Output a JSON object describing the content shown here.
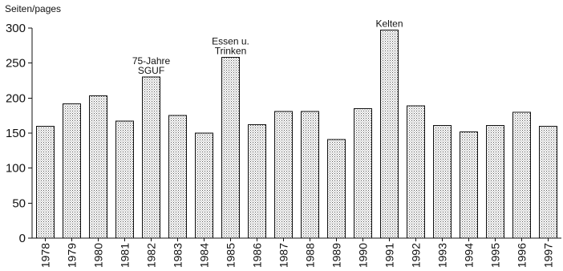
{
  "chart_data": {
    "type": "bar",
    "title": "",
    "xlabel": "",
    "ylabel": "Seiten/pages",
    "categories": [
      "1978",
      "1979",
      "1980",
      "1981",
      "1982",
      "1983",
      "1984",
      "1985",
      "1986",
      "1987",
      "1988",
      "1989",
      "1990",
      "1991",
      "1992",
      "1993",
      "1994",
      "1995",
      "1996",
      "1997"
    ],
    "values": [
      160,
      192,
      203,
      167,
      230,
      175,
      150,
      258,
      162,
      181,
      181,
      141,
      185,
      297,
      189,
      161,
      152,
      161,
      180,
      160
    ],
    "ylim": [
      0,
      300
    ],
    "yticks": [
      "0",
      "50",
      "100",
      "150",
      "200",
      "250",
      "300"
    ],
    "grid": false,
    "legend": "none",
    "annotations": [
      {
        "category": "1982",
        "lines": [
          "75-Jahre",
          "SGUF"
        ]
      },
      {
        "category": "1985",
        "lines": [
          "Essen u.",
          "Trinken"
        ]
      },
      {
        "category": "1991",
        "lines": [
          "Kelten"
        ]
      }
    ],
    "colors": {
      "bar_fill": "#ffffff",
      "bar_dots": "#555555",
      "bar_outline": "#111111",
      "axis": "#111111"
    }
  }
}
